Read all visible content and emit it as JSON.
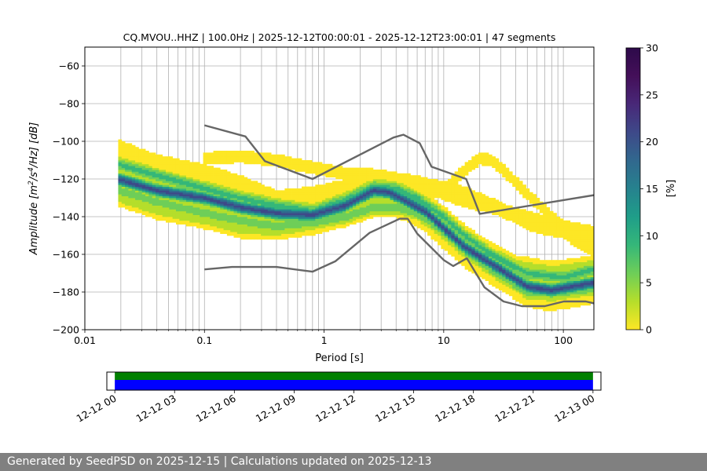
{
  "chart_data": {
    "type": "heatmap",
    "title": "CQ.MVOU..HHZ | 100.0Hz | 2025-12-12T00:00:01 - 2025-12-12T23:00:01 | 47 segments",
    "xlabel": "Period [s]",
    "ylabel_parts": [
      "Amplitude [m",
      "2",
      "/s",
      "4",
      "/Hz] [dB]"
    ],
    "x_scale": "log",
    "xlim": [
      0.01,
      180
    ],
    "ylim": [
      -200,
      -50
    ],
    "x_ticks": [
      {
        "value": 0.01,
        "label": "0.01"
      },
      {
        "value": 0.1,
        "label": "0.1"
      },
      {
        "value": 1,
        "label": "1"
      },
      {
        "value": 10,
        "label": "10"
      },
      {
        "value": 100,
        "label": "100"
      }
    ],
    "y_ticks": [
      {
        "value": -60,
        "label": "−60"
      },
      {
        "value": -80,
        "label": "−80"
      },
      {
        "value": -100,
        "label": "−100"
      },
      {
        "value": -120,
        "label": "−120"
      },
      {
        "value": -140,
        "label": "−140"
      },
      {
        "value": -160,
        "label": "−160"
      },
      {
        "value": -180,
        "label": "−180"
      },
      {
        "value": -200,
        "label": "−200"
      }
    ],
    "grid": true,
    "colorbar": {
      "label": "[%]",
      "range": [
        0,
        30
      ],
      "ticks": [
        {
          "value": 0,
          "label": "0"
        },
        {
          "value": 5,
          "label": "5"
        },
        {
          "value": 10,
          "label": "10"
        },
        {
          "value": 15,
          "label": "15"
        },
        {
          "value": 20,
          "label": "20"
        },
        {
          "value": 25,
          "label": "25"
        },
        {
          "value": 30,
          "label": "30"
        }
      ],
      "colormap": "viridis_r"
    },
    "density_bands": [
      {
        "name": "main-mode",
        "percent": 22,
        "points": [
          [
            0.019,
            -120
          ],
          [
            0.04,
            -126
          ],
          [
            0.1,
            -130
          ],
          [
            0.2,
            -135
          ],
          [
            0.4,
            -138
          ],
          [
            0.8,
            -139
          ],
          [
            1.5,
            -134
          ],
          [
            2.6,
            -126
          ],
          [
            3.5,
            -127
          ],
          [
            5,
            -132
          ],
          [
            7,
            -137
          ],
          [
            10,
            -146
          ],
          [
            15,
            -156
          ],
          [
            20,
            -161
          ],
          [
            30,
            -168
          ],
          [
            50,
            -177
          ],
          [
            80,
            -179
          ],
          [
            180,
            -175
          ]
        ]
      },
      {
        "name": "main-spread-upper",
        "percent": 10,
        "points": [
          [
            0.019,
            -112
          ],
          [
            0.04,
            -118
          ],
          [
            0.1,
            -125
          ],
          [
            0.2,
            -130
          ],
          [
            0.4,
            -134
          ],
          [
            0.8,
            -137
          ],
          [
            1.5,
            -131
          ],
          [
            2.6,
            -124
          ],
          [
            4,
            -125
          ],
          [
            6,
            -130
          ],
          [
            10,
            -140
          ],
          [
            15,
            -150
          ],
          [
            25,
            -160
          ],
          [
            50,
            -170
          ],
          [
            100,
            -172
          ],
          [
            180,
            -168
          ]
        ]
      },
      {
        "name": "main-spread-lower",
        "percent": 8,
        "points": [
          [
            0.019,
            -126
          ],
          [
            0.04,
            -132
          ],
          [
            0.1,
            -138
          ],
          [
            0.2,
            -142
          ],
          [
            0.4,
            -145
          ],
          [
            0.8,
            -143
          ],
          [
            1.5,
            -140
          ],
          [
            2.6,
            -135
          ],
          [
            4,
            -135
          ],
          [
            6,
            -138
          ],
          [
            10,
            -148
          ],
          [
            15,
            -158
          ],
          [
            25,
            -168
          ],
          [
            50,
            -180
          ],
          [
            100,
            -180
          ],
          [
            180,
            -178
          ]
        ]
      },
      {
        "name": "secondary-upper",
        "percent": 3,
        "points": [
          [
            0.019,
            -103
          ],
          [
            0.04,
            -111
          ],
          [
            0.1,
            -116
          ],
          [
            0.2,
            -122
          ],
          [
            0.4,
            -130
          ],
          [
            0.8,
            -128
          ],
          [
            1.5,
            -124
          ],
          [
            3,
            -120
          ],
          [
            5,
            -121
          ],
          [
            8,
            -124
          ],
          [
            15,
            -128
          ],
          [
            30,
            -136
          ],
          [
            60,
            -145
          ],
          [
            180,
            -150
          ]
        ]
      },
      {
        "name": "secondary-lower",
        "percent": 4,
        "points": [
          [
            0.019,
            -130
          ],
          [
            0.04,
            -137
          ],
          [
            0.1,
            -142
          ],
          [
            0.2,
            -147
          ],
          [
            0.4,
            -148
          ],
          [
            0.8,
            -145
          ],
          [
            1.5,
            -138
          ],
          [
            3,
            -134
          ],
          [
            6,
            -136
          ],
          [
            10,
            -145
          ],
          [
            20,
            -155
          ],
          [
            40,
            -165
          ],
          [
            80,
            -168
          ],
          [
            180,
            -165
          ]
        ]
      },
      {
        "name": "flat-upper-branch",
        "percent": 2,
        "points": [
          [
            0.1,
            -109
          ],
          [
            0.2,
            -108
          ],
          [
            0.4,
            -110
          ],
          [
            0.8,
            -114
          ],
          [
            1.5,
            -117
          ],
          [
            3,
            -118
          ],
          [
            6,
            -122
          ],
          [
            10,
            -128
          ],
          [
            15,
            -132
          ],
          [
            25,
            -135
          ],
          [
            50,
            -140
          ],
          [
            100,
            -145
          ],
          [
            180,
            -148
          ]
        ]
      },
      {
        "name": "hump-branch",
        "percent": 2,
        "points": [
          [
            10,
            -126
          ],
          [
            15,
            -115
          ],
          [
            20,
            -109
          ],
          [
            25,
            -110
          ],
          [
            35,
            -118
          ],
          [
            50,
            -128
          ],
          [
            80,
            -140
          ],
          [
            120,
            -152
          ],
          [
            180,
            -158
          ]
        ]
      }
    ],
    "noise_models": [
      {
        "name": "upper",
        "points": [
          [
            0.1,
            -91.5
          ],
          [
            0.22,
            -97.4
          ],
          [
            0.32,
            -110.5
          ],
          [
            0.8,
            -120
          ],
          [
            3.8,
            -98
          ],
          [
            4.6,
            -96.5
          ],
          [
            6.3,
            -101
          ],
          [
            7.9,
            -113.5
          ],
          [
            15.4,
            -120
          ],
          [
            20,
            -138.5
          ],
          [
            180,
            -128.6
          ]
        ]
      },
      {
        "name": "lower",
        "points": [
          [
            0.1,
            -168
          ],
          [
            0.17,
            -166.7
          ],
          [
            0.4,
            -166.7
          ],
          [
            0.8,
            -169.2
          ],
          [
            1.24,
            -163.7
          ],
          [
            2.4,
            -148.6
          ],
          [
            4.3,
            -141.1
          ],
          [
            5,
            -141.1
          ],
          [
            6.0,
            -149
          ],
          [
            10,
            -163
          ],
          [
            12,
            -166.2
          ],
          [
            15.6,
            -162.1
          ],
          [
            21.9,
            -177.5
          ],
          [
            31.6,
            -185
          ],
          [
            45,
            -187.5
          ],
          [
            70,
            -187.5
          ],
          [
            101,
            -185
          ],
          [
            154,
            -185
          ],
          [
            180,
            -186
          ]
        ]
      }
    ]
  },
  "timeline": {
    "start_label": "12-12 00",
    "end_label": "12-13 00",
    "tick_labels": [
      "12-12 00",
      "12-12 03",
      "12-12 06",
      "12-12 09",
      "12-12 12",
      "12-12 15",
      "12-12 18",
      "12-12 21",
      "12-13 00"
    ],
    "range_hours": [
      -0.4,
      24.4
    ],
    "coverage_hours": [
      0,
      24
    ],
    "colors": {
      "data": "#0000ff",
      "gaps": "#008000"
    }
  },
  "footer": {
    "text": "Generated by SeedPSD on 2025-12-15 | Calculations updated on 2025-12-13"
  },
  "colors": {
    "model_line": "#666666",
    "grid": "#b0b0b0",
    "axis": "#000000"
  }
}
